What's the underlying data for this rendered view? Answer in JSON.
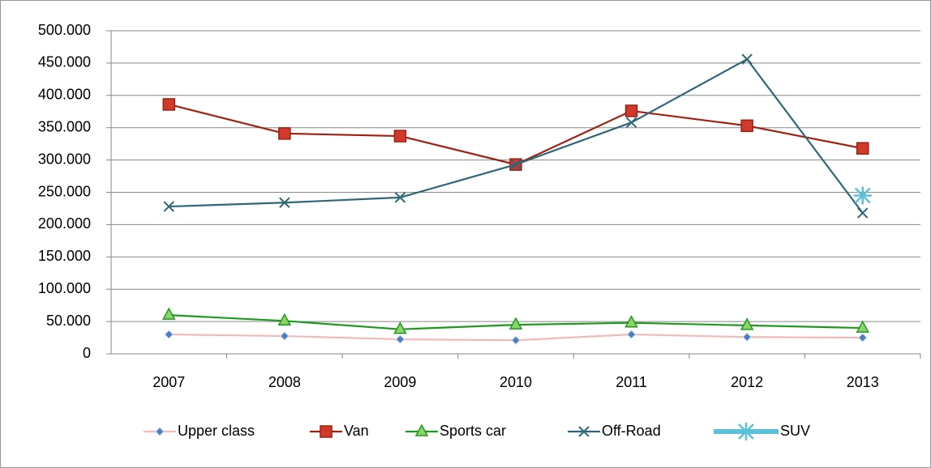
{
  "chart_data": {
    "type": "line",
    "categories": [
      "2007",
      "2008",
      "2009",
      "2010",
      "2011",
      "2012",
      "2013"
    ],
    "series": [
      {
        "name": "Upper class",
        "color": "#f2b9b9",
        "marker_color": "#4a7ec0",
        "marker": "diamond",
        "values": [
          30000,
          27500,
          22500,
          21000,
          30000,
          26000,
          25000
        ]
      },
      {
        "name": "Van",
        "color": "#a02010",
        "marker_color": "#cf3a2a",
        "marker": "square",
        "values": [
          386000,
          341000,
          337000,
          293000,
          376000,
          353000,
          318000
        ]
      },
      {
        "name": "Sports car",
        "color": "#1e9a1e",
        "marker_color": "#8ed36a",
        "marker": "triangle",
        "values": [
          60000,
          51000,
          38000,
          45000,
          48000,
          44000,
          40000
        ]
      },
      {
        "name": "Off-Road",
        "color": "#2e6878",
        "marker_color": "#2e6878",
        "marker": "x",
        "values": [
          228000,
          234000,
          242000,
          293000,
          358000,
          456000,
          218000
        ]
      },
      {
        "name": "SUV",
        "color": "#5bc0d8",
        "marker_color": "#5bc0d8",
        "marker": "star",
        "values": [
          null,
          null,
          null,
          null,
          null,
          null,
          245000
        ]
      }
    ],
    "ylim": [
      0,
      500000
    ],
    "yticks": [
      0,
      {
        "value": 50000,
        "label": "50.000"
      },
      {
        "value": 100000,
        "label": "100.000"
      },
      {
        "value": 150000,
        "label": "150.000"
      },
      {
        "value": 200000,
        "label": "200.000"
      },
      {
        "value": 250000,
        "label": "250.000"
      },
      {
        "value": 300000,
        "label": "300.000"
      },
      {
        "value": 350000,
        "label": "350.000"
      },
      {
        "value": 400000,
        "label": "400.000"
      },
      {
        "value": 450000,
        "label": "450.000"
      },
      {
        "value": 500000,
        "label": "500.000"
      }
    ],
    "grid": true,
    "legend": "bottom"
  }
}
